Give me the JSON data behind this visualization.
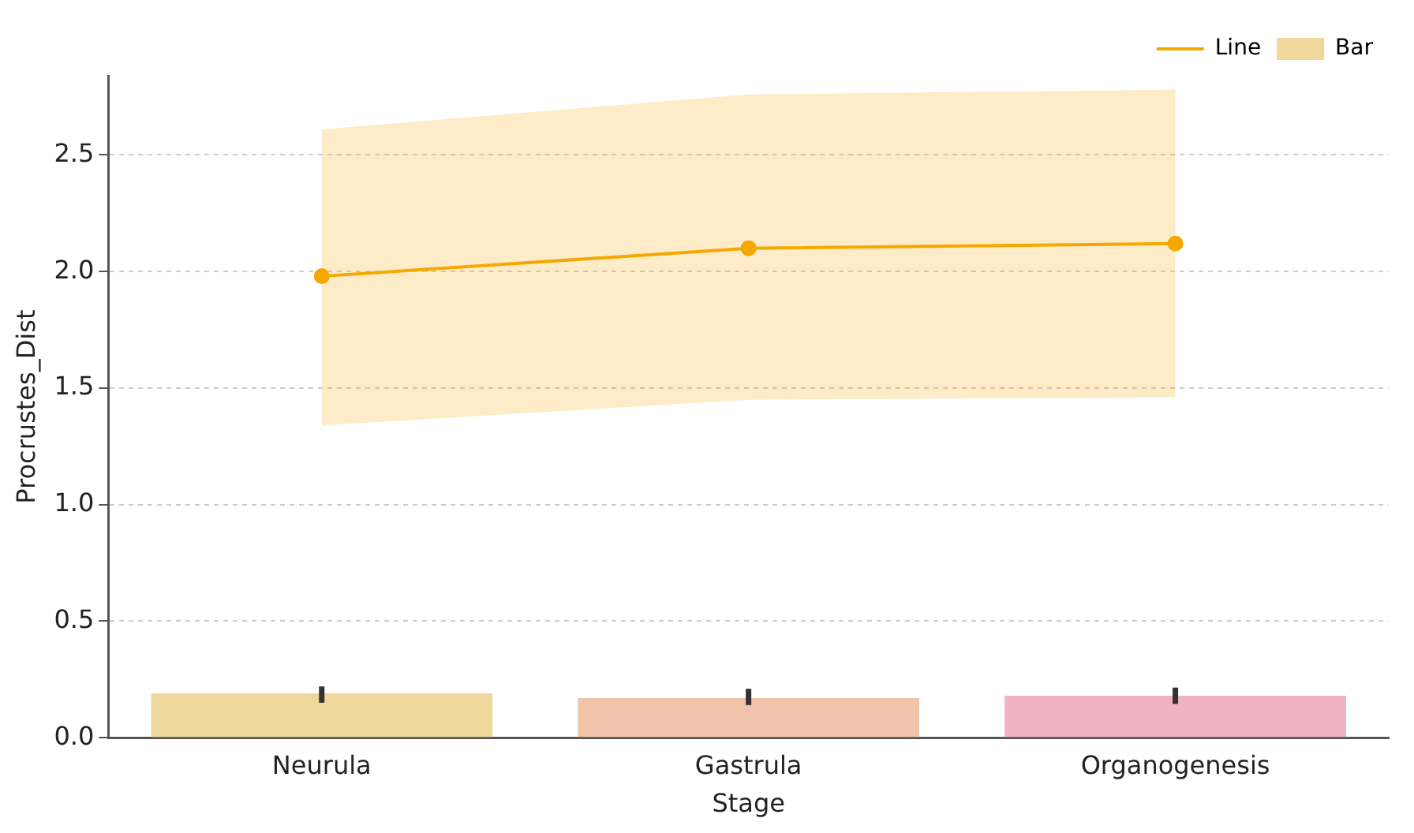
{
  "chart_data": {
    "type": "bar",
    "xlabel": "Stage",
    "ylabel": "Procrustes_Dist",
    "categories": [
      "Neurula",
      "Gastrula",
      "Organogenesis"
    ],
    "series": [
      {
        "name": "Line",
        "type": "line",
        "color": "#f5a800",
        "values": [
          1.98,
          2.1,
          2.12
        ],
        "lower": [
          1.34,
          1.45,
          1.46
        ],
        "upper": [
          2.61,
          2.76,
          2.78
        ]
      },
      {
        "name": "Bar",
        "color": "#f0d89c",
        "colors": [
          "#f0d89c",
          "#f0c4ab",
          "#f0b3c0"
        ],
        "values": [
          0.19,
          0.17,
          0.18
        ],
        "errors": [
          [
            0.15,
            0.22
          ],
          [
            0.14,
            0.21
          ],
          [
            0.145,
            0.215
          ]
        ]
      }
    ],
    "ylim": [
      0,
      2.84
    ],
    "yticks": [
      {
        "value": 0,
        "label": "0.0"
      },
      0.5,
      {
        "value": 1,
        "label": "1.0"
      },
      1.5,
      {
        "value": 2,
        "label": "2.0"
      },
      2.5
    ],
    "grid": "y",
    "legend": "top right",
    "marker": "circle",
    "line_style": "solid"
  }
}
